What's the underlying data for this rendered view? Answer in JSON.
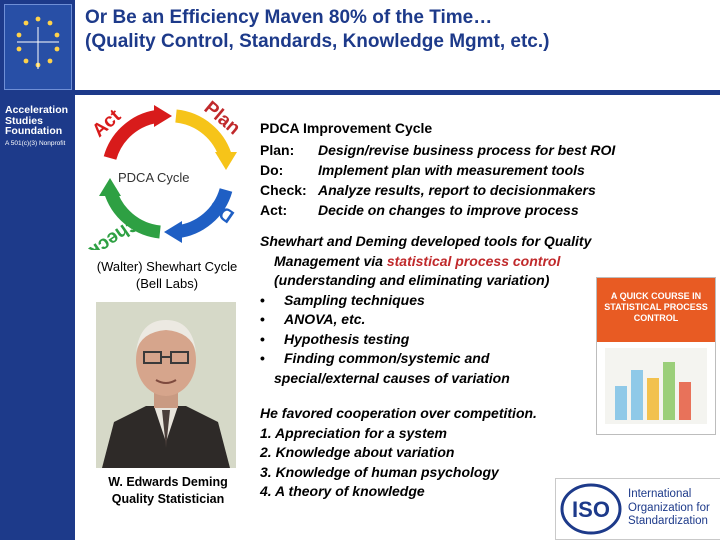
{
  "header": {
    "title_line1": "Or Be an Efficiency Maven 80% of the Time…",
    "title_line2": "(Quality Control, Standards, Knowledge Mgmt, etc.)"
  },
  "sidebar": {
    "org_name": "Acceleration Studies Foundation",
    "org_sub": "A 501(c)(3) Nonprofit"
  },
  "diagram": {
    "center_label": "PDCA Cycle",
    "segments": [
      "Act",
      "Plan",
      "Do",
      "Check"
    ],
    "colors": {
      "act": "#d81b1b",
      "plan": "#f6c419",
      "do": "#1f5fc4",
      "check": "#2ea043"
    }
  },
  "captions": {
    "shewhart_line1": "(Walter) Shewhart Cycle",
    "shewhart_line2": "(Bell Labs)",
    "deming_line1": "W. Edwards Deming",
    "deming_line2": "Quality Statistician"
  },
  "pdca_text": {
    "title": "PDCA Improvement Cycle",
    "rows": [
      {
        "k": "Plan:",
        "v": "Design/revise business process for best ROI"
      },
      {
        "k": "Do:",
        "v": "Implement plan with measurement tools"
      },
      {
        "k": "Check:",
        "v": "Analyze results, report to decisionmakers"
      },
      {
        "k": "Act:",
        "v": "Decide on changes to improve process"
      }
    ]
  },
  "shewhart_text": {
    "line1": "Shewhart and Deming developed tools for Quality",
    "line2_pre": "Management via ",
    "line2_red": "statistical process control",
    "line3": "(understanding and eliminating variation)",
    "bullets": [
      "Sampling techniques",
      "ANOVA, etc.",
      "Hypothesis testing",
      "Finding common/systemic and"
    ],
    "bullet_cont": "special/external causes of variation"
  },
  "cooperation_text": {
    "lines": [
      "He favored cooperation over competition.",
      "1. Appreciation for a system",
      "2. Knowledge about variation",
      "3. Knowledge of human psychology",
      "4. A theory of knowledge"
    ]
  },
  "book": {
    "title": "A QUICK COURSE IN STATISTICAL PROCESS CONTROL"
  },
  "iso": {
    "mark": "ISO",
    "line1": "International",
    "line2": "Organization for",
    "line3": "Standardization"
  }
}
